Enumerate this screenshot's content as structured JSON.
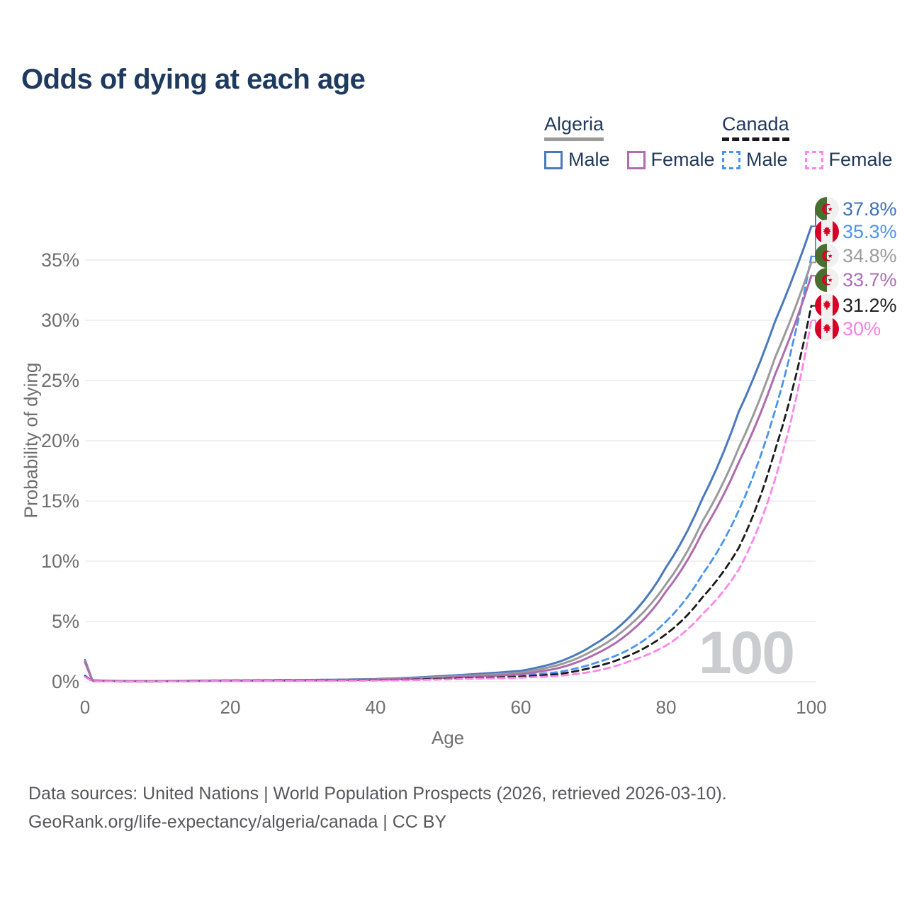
{
  "title": "Odds of dying at each age",
  "legend": {
    "groups": [
      {
        "label": "Algeria",
        "style": "solid",
        "underline_color": "#9a9a9a",
        "items": [
          {
            "label": "Male",
            "color": "#4a79bd",
            "dashed": false
          },
          {
            "label": "Female",
            "color": "#ae6cae",
            "dashed": false
          }
        ]
      },
      {
        "label": "Canada",
        "style": "dashed",
        "underline_color": "#1a1a1a",
        "items": [
          {
            "label": "Male",
            "color": "#4a94f0",
            "dashed": true
          },
          {
            "label": "Female",
            "color": "#fc86ea",
            "dashed": true
          }
        ]
      }
    ]
  },
  "chart_data": {
    "type": "line",
    "title": "Odds of dying at each age",
    "xlabel": "Age",
    "ylabel": "Probability of dying",
    "grid": "horizontal",
    "legend_position": "top-right",
    "xlim": [
      0,
      100
    ],
    "ylim_pct": [
      0,
      38.5
    ],
    "x_ticks": [
      {
        "label": "0",
        "value": 0
      },
      {
        "label": "20",
        "value": 20
      },
      {
        "label": "40",
        "value": 40
      },
      {
        "label": "60",
        "value": 60
      },
      {
        "label": "80",
        "value": 80
      },
      {
        "label": "100",
        "value": 100
      }
    ],
    "y_ticks": [
      {
        "label": "0%",
        "value": 0
      },
      {
        "label": "5%",
        "value": 5
      },
      {
        "label": "10%",
        "value": 10
      },
      {
        "label": "15%",
        "value": 15
      },
      {
        "label": "20%",
        "value": 20
      },
      {
        "label": "25%",
        "value": 25
      },
      {
        "label": "30%",
        "value": 30
      },
      {
        "label": "35%",
        "value": 35
      }
    ],
    "ages": [
      0,
      1,
      5,
      10,
      15,
      20,
      25,
      30,
      35,
      40,
      45,
      50,
      55,
      60,
      65,
      70,
      75,
      80,
      85,
      90,
      95,
      100
    ],
    "series": [
      {
        "name": "Algeria Male",
        "country": "algeria",
        "sex": "male",
        "style": "solid",
        "color": "#4a79bd",
        "label_color": "#3c70b8",
        "end_label": "37.8%",
        "end_value": 37.8,
        "values": [
          1.8,
          0.12,
          0.05,
          0.04,
          0.07,
          0.1,
          0.12,
          0.14,
          0.17,
          0.22,
          0.33,
          0.5,
          0.68,
          0.9,
          1.6,
          3.05,
          5.4,
          9.5,
          15.2,
          22.4,
          29.9,
          37.8
        ]
      },
      {
        "name": "Canada Male",
        "country": "canada",
        "sex": "male",
        "style": "dashed",
        "color": "#4a94f0",
        "label_color": "#4b93f0",
        "end_label": "35.3%",
        "end_value": 35.3,
        "values": [
          0.5,
          0.04,
          0.01,
          0.01,
          0.05,
          0.08,
          0.09,
          0.1,
          0.12,
          0.15,
          0.21,
          0.3,
          0.4,
          0.52,
          0.78,
          1.5,
          2.7,
          5.0,
          8.9,
          14.2,
          22.5,
          35.3
        ]
      },
      {
        "name": "Algeria Both sexes",
        "country": "algeria",
        "sex": "both",
        "style": "solid",
        "color": "#9a9a9a",
        "label_color": "#9b9b9b",
        "end_label": "34.8%",
        "end_value": 34.8,
        "values": [
          1.7,
          0.11,
          0.04,
          0.04,
          0.06,
          0.08,
          0.1,
          0.12,
          0.15,
          0.19,
          0.28,
          0.42,
          0.56,
          0.75,
          1.35,
          2.6,
          4.7,
          8.1,
          13.3,
          19.4,
          26.9,
          34.8
        ]
      },
      {
        "name": "Algeria Female",
        "country": "algeria",
        "sex": "female",
        "style": "solid",
        "color": "#ae6cae",
        "label_color": "#a86db6",
        "end_label": "33.7%",
        "end_value": 33.7,
        "values": [
          1.6,
          0.1,
          0.04,
          0.03,
          0.05,
          0.07,
          0.08,
          0.1,
          0.12,
          0.16,
          0.23,
          0.34,
          0.46,
          0.62,
          1.1,
          2.2,
          4.1,
          7.5,
          12.4,
          18.2,
          25.5,
          33.7
        ]
      },
      {
        "name": "Canada Both sexes",
        "country": "canada",
        "sex": "both",
        "style": "dashed",
        "color": "#1a1a1a",
        "label_color": "#1f1f1f",
        "end_label": "31.2%",
        "end_value": 31.2,
        "values": [
          0.45,
          0.03,
          0.01,
          0.01,
          0.04,
          0.06,
          0.07,
          0.08,
          0.1,
          0.12,
          0.17,
          0.24,
          0.32,
          0.42,
          0.62,
          1.2,
          2.2,
          3.95,
          7.0,
          11.1,
          19.2,
          31.2
        ]
      },
      {
        "name": "Canada Female",
        "country": "canada",
        "sex": "female",
        "style": "dashed",
        "color": "#fc86ea",
        "label_color": "#fb7ee6",
        "end_label": "30%",
        "end_value": 30.0,
        "values": [
          0.4,
          0.03,
          0.01,
          0.01,
          0.03,
          0.04,
          0.05,
          0.06,
          0.07,
          0.09,
          0.13,
          0.19,
          0.26,
          0.33,
          0.47,
          0.85,
          1.7,
          3.0,
          5.6,
          9.3,
          16.8,
          30.0
        ]
      }
    ],
    "watermark": "100",
    "flag_colors": {
      "algeria_green": "#496E2D",
      "algeria_red": "#D80027",
      "canada_red": "#D80027",
      "flag_white": "#F0F0F0"
    },
    "grid_color": "#ececec"
  },
  "footer": {
    "line1": "Data sources: United Nations | World Population Prospects (2026, retrieved 2026-03-10).",
    "line2": "GeoRank.org/life-expectancy/algeria/canada | CC BY"
  }
}
